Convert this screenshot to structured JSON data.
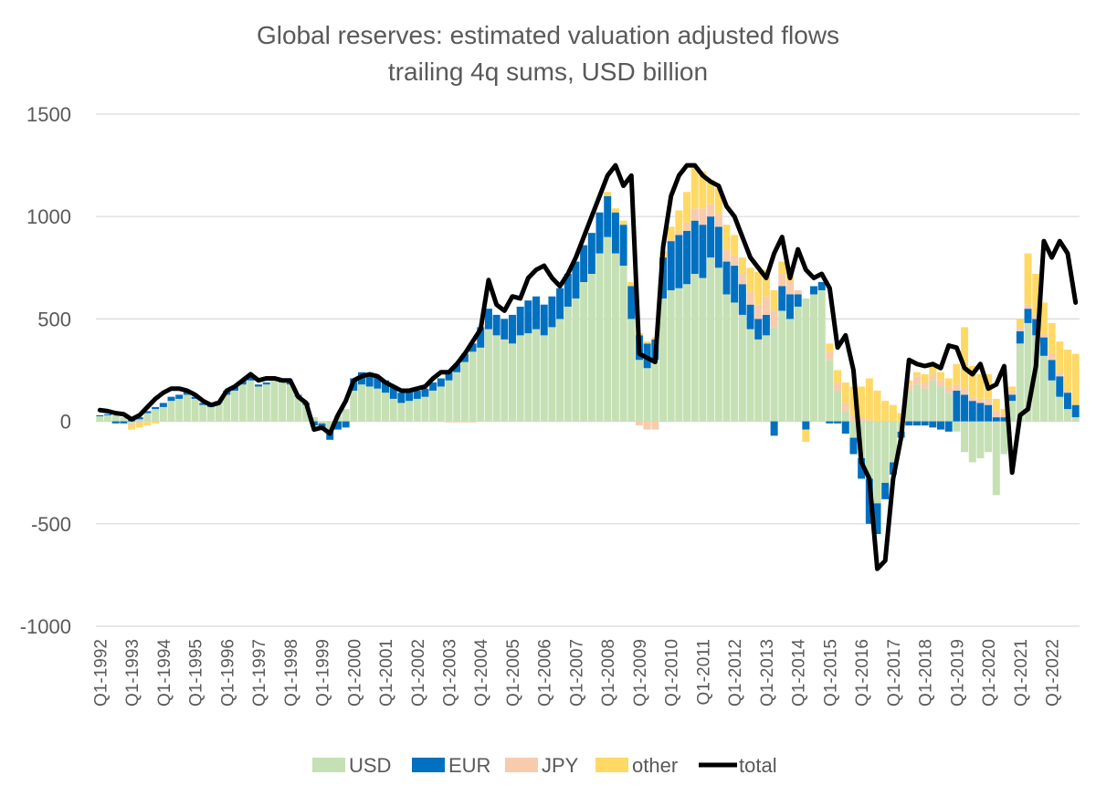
{
  "chart_data": {
    "type": "bar",
    "stacked": true,
    "title": "Global reserves: estimated valuation adjusted flows",
    "subtitle": "trailing 4q sums, USD billion",
    "xlabel": "",
    "ylabel": "",
    "ylim": [
      -1000,
      1500
    ],
    "yticks": [
      1500,
      1000,
      500,
      0,
      -500,
      -1000
    ],
    "grid": true,
    "legend_position": "bottom",
    "x_tick_labels": [
      "Q1-1992",
      "Q1-1993",
      "Q1-1994",
      "Q1-1995",
      "Q1-1996",
      "Q1-1997",
      "Q1-1998",
      "Q1-1999",
      "Q1-2000",
      "Q1-2001",
      "Q1-2002",
      "Q1-2003",
      "Q1-2004",
      "Q1-2005",
      "Q1-2006",
      "Q1-2007",
      "Q1-2008",
      "Q1-2009",
      "Q1-2010",
      "Q1-2011",
      "Q1-2012",
      "Q1-2013",
      "Q1-2014",
      "Q1-2015",
      "Q1-2016",
      "Q1-2017",
      "Q1-2018",
      "Q1-2019",
      "Q1-2020",
      "Q1-2021",
      "Q1-2022"
    ],
    "series": [
      {
        "name": "USD",
        "type": "bar",
        "color": "#c5e0b4",
        "yearly": [
          [
            25,
            30,
            30,
            20
          ],
          [
            -10,
            10,
            40,
            60
          ],
          [
            70,
            100,
            110,
            130
          ],
          [
            110,
            80,
            70,
            90
          ],
          [
            130,
            150,
            180,
            200
          ],
          [
            170,
            180,
            200,
            190
          ],
          [
            180,
            120,
            80,
            20
          ],
          [
            -10,
            -40,
            30,
            60
          ],
          [
            150,
            180,
            170,
            160
          ],
          [
            140,
            110,
            90,
            100
          ],
          [
            110,
            120,
            150,
            170
          ],
          [
            200,
            240,
            290,
            340
          ],
          [
            360,
            450,
            420,
            400
          ],
          [
            380,
            420,
            430,
            450
          ],
          [
            420,
            460,
            500,
            560
          ],
          [
            600,
            680,
            720,
            820
          ],
          [
            900,
            820,
            760,
            500
          ],
          [
            300,
            260,
            300,
            600
          ],
          [
            640,
            650,
            670,
            720
          ],
          [
            700,
            800,
            750,
            620
          ],
          [
            580,
            520,
            450,
            400
          ],
          [
            420,
            460,
            540,
            500
          ],
          [
            560,
            600,
            620,
            640
          ],
          [
            300,
            150,
            50,
            -80
          ],
          [
            -180,
            -280,
            -400,
            -300
          ],
          [
            -200,
            -50,
            150,
            180
          ],
          [
            160,
            200,
            170,
            140
          ],
          [
            -50,
            -150,
            -200,
            -180
          ],
          [
            -150,
            -360,
            -160,
            100
          ],
          [
            380,
            480,
            420,
            320
          ],
          [
            200,
            120,
            60,
            20
          ]
        ]
      },
      {
        "name": "EUR",
        "type": "bar",
        "color": "#0070c0",
        "yearly": [
          [
            5,
            5,
            -10,
            -10
          ],
          [
            10,
            10,
            10,
            10
          ],
          [
            20,
            20,
            20,
            20
          ],
          [
            10,
            10,
            10,
            10
          ],
          [
            20,
            20,
            20,
            20
          ],
          [
            10,
            10,
            10,
            10
          ],
          [
            10,
            10,
            10,
            -20
          ],
          [
            -20,
            -50,
            -40,
            -30
          ],
          [
            60,
            60,
            60,
            60
          ],
          [
            60,
            60,
            50,
            50
          ],
          [
            40,
            40,
            40,
            40
          ],
          [
            40,
            40,
            40,
            40
          ],
          [
            100,
            100,
            100,
            100
          ],
          [
            140,
            140,
            160,
            160
          ],
          [
            150,
            150,
            150,
            160
          ],
          [
            180,
            180,
            200,
            200
          ],
          [
            200,
            200,
            200,
            160
          ],
          [
            120,
            120,
            100,
            200
          ],
          [
            240,
            260,
            260,
            260
          ],
          [
            260,
            200,
            200,
            160
          ],
          [
            180,
            150,
            120,
            100
          ],
          [
            100,
            -70,
            120,
            120
          ],
          [
            60,
            -40,
            40,
            40
          ],
          [
            -10,
            -10,
            -60,
            -80
          ],
          [
            -100,
            -220,
            -150,
            -80
          ],
          [
            -60,
            -30,
            -20,
            -20
          ],
          [
            -20,
            -30,
            -40,
            -50
          ],
          [
            150,
            130,
            100,
            90
          ],
          [
            80,
            20,
            20,
            30
          ],
          [
            60,
            70,
            80,
            90
          ],
          [
            100,
            100,
            80,
            60
          ]
        ]
      },
      {
        "name": "JPY",
        "type": "bar",
        "color": "#f8cbad",
        "yearly": [
          [
            0,
            0,
            0,
            0
          ],
          [
            -10,
            -10,
            -5,
            0
          ],
          [
            0,
            0,
            0,
            0
          ],
          [
            0,
            0,
            0,
            0
          ],
          [
            0,
            0,
            0,
            0
          ],
          [
            0,
            0,
            0,
            0
          ],
          [
            0,
            0,
            0,
            0
          ],
          [
            0,
            0,
            0,
            0
          ],
          [
            0,
            0,
            0,
            0
          ],
          [
            0,
            0,
            0,
            0
          ],
          [
            0,
            0,
            0,
            0
          ],
          [
            -5,
            -5,
            -5,
            -5
          ],
          [
            0,
            0,
            0,
            0
          ],
          [
            0,
            0,
            0,
            0
          ],
          [
            0,
            0,
            0,
            0
          ],
          [
            0,
            0,
            0,
            0
          ],
          [
            0,
            0,
            0,
            0
          ],
          [
            -20,
            -40,
            -40,
            0
          ],
          [
            10,
            20,
            40,
            60
          ],
          [
            80,
            60,
            60,
            60
          ],
          [
            50,
            50,
            60,
            70
          ],
          [
            90,
            80,
            60,
            60
          ],
          [
            20,
            0,
            0,
            0
          ],
          [
            40,
            40,
            40,
            30
          ],
          [
            20,
            10,
            0,
            0
          ],
          [
            0,
            0,
            30,
            40
          ],
          [
            30,
            30,
            30,
            30
          ],
          [
            30,
            30,
            20,
            20
          ],
          [
            30,
            30,
            20,
            20
          ],
          [
            20,
            20,
            20,
            20
          ],
          [
            30,
            20,
            10,
            0
          ]
        ]
      },
      {
        "name": "other",
        "type": "bar",
        "color": "#ffd966",
        "yearly": [
          [
            0,
            0,
            0,
            0
          ],
          [
            -20,
            -20,
            -15,
            -10
          ],
          [
            0,
            0,
            0,
            0
          ],
          [
            0,
            0,
            0,
            0
          ],
          [
            0,
            0,
            0,
            0
          ],
          [
            0,
            0,
            0,
            0
          ],
          [
            0,
            0,
            0,
            0
          ],
          [
            0,
            0,
            0,
            0
          ],
          [
            0,
            0,
            0,
            0
          ],
          [
            0,
            0,
            0,
            0
          ],
          [
            0,
            0,
            0,
            0
          ],
          [
            0,
            0,
            0,
            0
          ],
          [
            0,
            0,
            0,
            0
          ],
          [
            0,
            0,
            0,
            0
          ],
          [
            0,
            0,
            0,
            0
          ],
          [
            0,
            0,
            0,
            0
          ],
          [
            20,
            20,
            20,
            20
          ],
          [
            10,
            10,
            10,
            30
          ],
          [
            60,
            100,
            150,
            200
          ],
          [
            180,
            120,
            130,
            120
          ],
          [
            100,
            80,
            120,
            160
          ],
          [
            130,
            100,
            60,
            60
          ],
          [
            0,
            -60,
            0,
            0
          ],
          [
            40,
            60,
            100,
            140
          ],
          [
            150,
            200,
            150,
            100
          ],
          [
            80,
            40,
            20,
            20
          ],
          [
            40,
            40,
            40,
            40
          ],
          [
            100,
            300,
            150,
            120
          ],
          [
            120,
            60,
            20,
            20
          ],
          [
            40,
            250,
            200,
            150
          ],
          [
            150,
            150,
            200,
            250
          ]
        ]
      },
      {
        "name": "total",
        "type": "line",
        "color": "#000000",
        "yearly": [
          [
            55,
            50,
            40,
            35
          ],
          [
            10,
            30,
            70,
            110
          ],
          [
            140,
            160,
            160,
            150
          ],
          [
            130,
            100,
            80,
            90
          ],
          [
            150,
            170,
            200,
            230
          ],
          [
            200,
            210,
            210,
            200
          ],
          [
            200,
            120,
            90,
            -40
          ],
          [
            -30,
            -60,
            30,
            100
          ],
          [
            200,
            220,
            230,
            220
          ],
          [
            190,
            170,
            150,
            150
          ],
          [
            160,
            170,
            210,
            240
          ],
          [
            240,
            280,
            330,
            390
          ],
          [
            450,
            690,
            570,
            540
          ],
          [
            610,
            600,
            700,
            740
          ],
          [
            760,
            700,
            660,
            720
          ],
          [
            800,
            900,
            1000,
            1100
          ],
          [
            1200,
            1250,
            1150,
            1200
          ],
          [
            330,
            310,
            290,
            850
          ],
          [
            1100,
            1200,
            1250,
            1250
          ],
          [
            1200,
            1170,
            1150,
            1050
          ],
          [
            1000,
            900,
            800,
            750
          ],
          [
            700,
            820,
            900,
            700
          ],
          [
            840,
            740,
            700,
            720
          ],
          [
            650,
            360,
            420,
            250
          ],
          [
            -200,
            -280,
            -720,
            -680
          ],
          [
            -280,
            -80,
            300,
            280
          ],
          [
            270,
            280,
            260,
            370
          ],
          [
            360,
            260,
            230,
            280
          ],
          [
            160,
            180,
            270,
            -250
          ],
          [
            30,
            60,
            270,
            880
          ],
          [
            800,
            880,
            820,
            580
          ]
        ]
      }
    ]
  }
}
